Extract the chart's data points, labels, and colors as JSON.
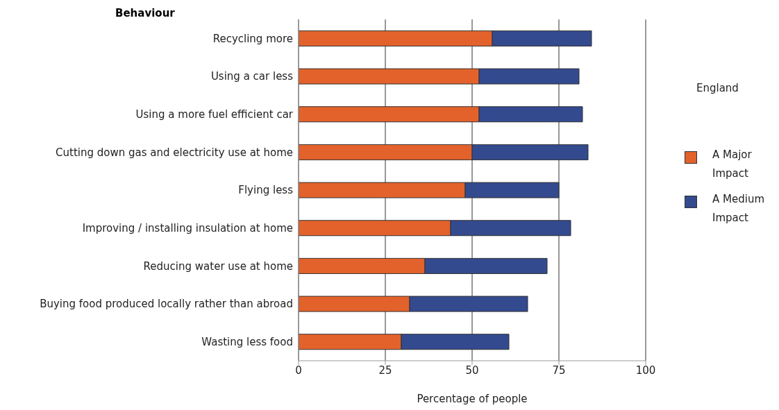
{
  "chart_data": {
    "type": "bar",
    "orientation": "horizontal",
    "stacked": true,
    "ylabel": "Behaviour",
    "xlabel": "Percentage of people",
    "legend_title": "England",
    "legend": "right",
    "categories": [
      "Recycling more",
      "Using a car less",
      "Using a more fuel efficient car",
      "Cutting down gas and electricity use at home",
      "Flying less",
      "Improving / installing insulation at home",
      "Reducing water use at home",
      "Buying food produced locally rather than abroad",
      "Wasting less food"
    ],
    "series": [
      {
        "name": "A Major Impact",
        "color": "#e3622b",
        "values": [
          55.8,
          52,
          52,
          50,
          48,
          43.8,
          36.4,
          32,
          29.6
        ]
      },
      {
        "name": "A Medium Impact",
        "color": "#334a8f",
        "values": [
          28.6,
          28.8,
          29.8,
          33.4,
          27,
          34.6,
          35.2,
          34,
          31
        ]
      }
    ],
    "xlim": [
      0,
      100
    ],
    "xticks": [
      0,
      25,
      50,
      75,
      100
    ],
    "grid": "x"
  }
}
